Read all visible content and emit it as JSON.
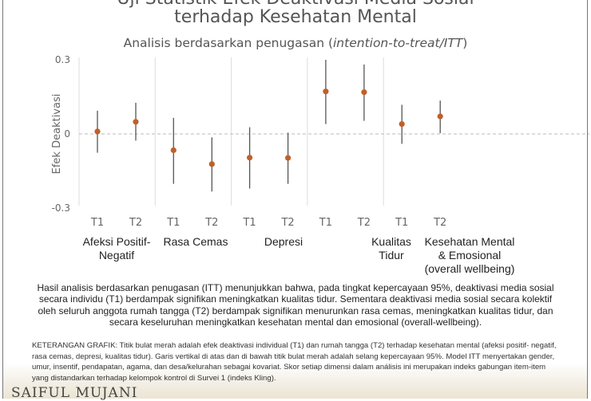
{
  "chart_data": {
    "type": "scatter",
    "title": "Uji Statistik Efek Deaktivasi Media Sosial terhadap Kesehatan Mental",
    "title_line1": "Uji Statistik Efek Deaktivasi Media Sosial",
    "title_line2": "terhadap Kesehatan Mental",
    "subtitle_prefix": "Analisis berdasarkan penugasan (",
    "subtitle_italic": "intention-to-treat/ITT",
    "subtitle_suffix": ")",
    "ylabel": "Efek Deaktivasi",
    "ylim": [
      -0.3,
      0.3
    ],
    "yticks": [
      "0.3",
      "0",
      "-0.3"
    ],
    "yticks_values": [
      0.3,
      0,
      -0.3
    ],
    "point_color": "#c0602a",
    "grid": "vertical separators between groups; dashed zero line",
    "groups": [
      {
        "label": "Afeksi Positif-Negatif",
        "items": [
          {
            "x": "T1",
            "estimate": 0.01,
            "ci_low": -0.076,
            "ci_high": 0.094
          },
          {
            "x": "T2",
            "estimate": 0.049,
            "ci_low": -0.027,
            "ci_high": 0.126
          }
        ]
      },
      {
        "label": "Rasa Cemas",
        "items": [
          {
            "x": "T1",
            "estimate": -0.066,
            "ci_low": -0.202,
            "ci_high": 0.065
          },
          {
            "x": "T2",
            "estimate": -0.122,
            "ci_low": -0.233,
            "ci_high": -0.014
          }
        ]
      },
      {
        "label": "Depresi",
        "items": [
          {
            "x": "T1",
            "estimate": -0.096,
            "ci_low": -0.221,
            "ci_high": 0.027
          },
          {
            "x": "T2",
            "estimate": -0.097,
            "ci_low": -0.202,
            "ci_high": 0.005
          }
        ]
      },
      {
        "label": "Kualitas Tidur",
        "items": [
          {
            "x": "T1",
            "estimate": 0.172,
            "ci_low": 0.04,
            "ci_high": 0.3
          },
          {
            "x": "T2",
            "estimate": 0.169,
            "ci_low": 0.053,
            "ci_high": 0.281
          }
        ]
      },
      {
        "label": "Kesehatan Mental & Emosional (overall wellbeing)",
        "items": [
          {
            "x": "T1",
            "estimate": 0.04,
            "ci_low": -0.04,
            "ci_high": 0.118
          },
          {
            "x": "T2",
            "estimate": 0.071,
            "ci_low": 0.003,
            "ci_high": 0.135
          }
        ]
      }
    ]
  },
  "category_labels": [
    "Afeksi Positif-\nNegatif",
    "Rasa Cemas",
    "Depresi",
    "Kualitas\nTidur",
    "Kesehatan Mental\n& Emosional\n(overall wellbeing)"
  ],
  "summary": "Hasil analisis berdasarkan penugasan (ITT) menunjukkan bahwa, pada tingkat kepercayaan 95%, deaktivasi media sosial secara individu (T1) berdampak signifikan meningkatkan kualitas tidur. Sementara deaktivasi media sosial secara kolektif oleh seluruh anggota rumah tangga (T2) berdampak signifikan menurunkan rasa cemas, meningkatkan kualitas tidur, dan secara keseluruhan meningkatkan kesehatan mental dan emosional (overall-wellbeing).",
  "note": "KETERANGAN GRAFIK: Titik bulat merah adalah efek deaktivasi individual (T1) dan rumah tangga (T2) terhadap kesehatan mental (afeksi positif- negatif, rasa cemas, depresi, kualitas tidur). Garis vertikal di atas dan di bawah titik bulat merah adalah selang kepercayaan 95%. Model ITT menyertakan gender, umur, insentif, pendapatan, agama, dan desa/kelurahan sebagai kovariat. Skor setiap dimensi dalam análisis ini merupakan indeks gabungan item-item yang distandarkan terhadap kelompok kontrol di Survei 1 (indeks Kling).",
  "logo": "SAIFUL MUJANI"
}
